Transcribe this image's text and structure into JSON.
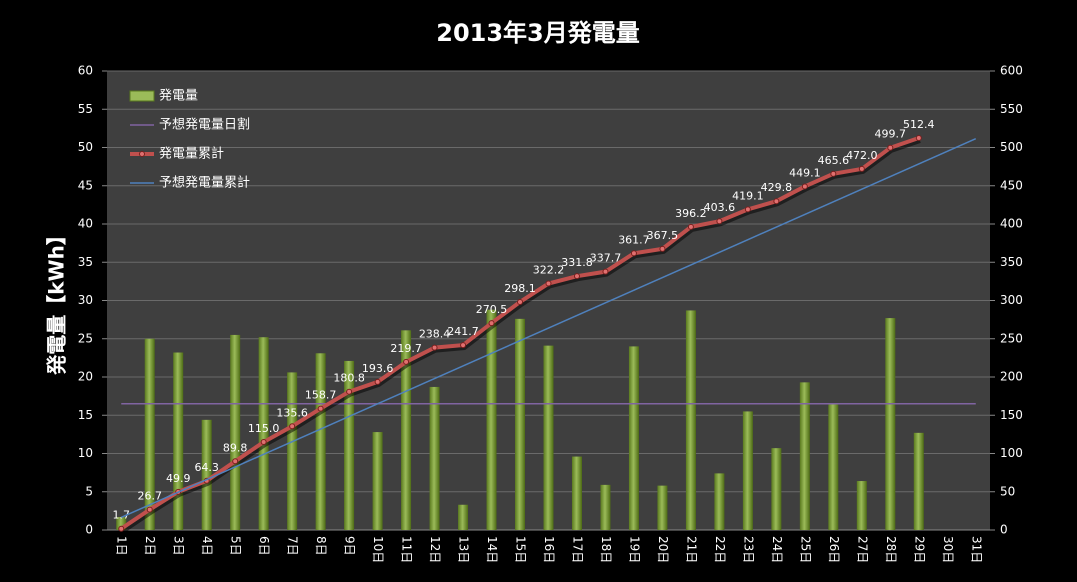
{
  "chart_data": {
    "type": "combo",
    "title": "2013年3月発電量",
    "y_label": "発電量【kWh】",
    "categories": [
      "1日",
      "2日",
      "3日",
      "4日",
      "5日",
      "6日",
      "7日",
      "8日",
      "9日",
      "10日",
      "11日",
      "12日",
      "13日",
      "14日",
      "15日",
      "16日",
      "17日",
      "18日",
      "19日",
      "20日",
      "21日",
      "22日",
      "23日",
      "24日",
      "25日",
      "26日",
      "27日",
      "28日",
      "29日",
      "30日",
      "31日"
    ],
    "ylim": [
      0,
      60
    ],
    "yticks": [
      0,
      5,
      10,
      15,
      20,
      25,
      30,
      35,
      40,
      45,
      50,
      55,
      60
    ],
    "y2lim": [
      0,
      600
    ],
    "y2ticks": [
      0,
      50,
      100,
      150,
      200,
      250,
      300,
      350,
      400,
      450,
      500,
      550,
      600
    ],
    "grid": true,
    "legend": "top-left",
    "series": [
      {
        "name": "発電量",
        "type": "bar",
        "color": "#9bbb59",
        "values": [
          1.7,
          25.0,
          23.2,
          14.4,
          25.5,
          25.2,
          20.6,
          23.1,
          22.1,
          12.8,
          26.1,
          18.7,
          3.3,
          28.8,
          27.6,
          24.1,
          9.6,
          5.9,
          24.0,
          5.8,
          28.7,
          7.4,
          15.5,
          10.7,
          19.3,
          16.5,
          6.4,
          27.7,
          12.7,
          null,
          null
        ]
      },
      {
        "name": "予想発電量日割",
        "type": "line",
        "color": "#8064a2",
        "values": [
          16.5,
          16.5,
          16.5,
          16.5,
          16.5,
          16.5,
          16.5,
          16.5,
          16.5,
          16.5,
          16.5,
          16.5,
          16.5,
          16.5,
          16.5,
          16.5,
          16.5,
          16.5,
          16.5,
          16.5,
          16.5,
          16.5,
          16.5,
          16.5,
          16.5,
          16.5,
          16.5,
          16.5,
          16.5,
          16.5,
          16.5
        ]
      },
      {
        "name": "発電量累計",
        "type": "line",
        "axis": "y2",
        "color": "#c0504d",
        "markers": true,
        "values": [
          1.7,
          26.7,
          49.9,
          64.3,
          89.8,
          115.0,
          135.6,
          158.7,
          180.8,
          193.6,
          219.7,
          238.4,
          241.7,
          270.5,
          298.1,
          322.2,
          331.8,
          337.7,
          361.7,
          367.5,
          396.2,
          403.6,
          419.1,
          429.8,
          449.1,
          465.6,
          472.0,
          499.7,
          512.4,
          null,
          null
        ],
        "value_labels": [
          "1.7",
          "26.7",
          "49.9",
          "64.3",
          "89.8",
          "115.0",
          "135.6",
          "158.7",
          "180.8",
          "193.6",
          "219.7",
          "238.4",
          "241.7",
          "270.5",
          "298.1",
          "322.2",
          "331.8",
          "337.7",
          "361.7",
          "367.5",
          "396.2",
          "403.6",
          "419.1",
          "429.8",
          "449.1",
          "465.6",
          "472.0",
          "499.7",
          "512.4",
          null,
          null
        ]
      },
      {
        "name": "予想発電量累計",
        "type": "line",
        "axis": "y2",
        "color": "#4f81bd",
        "values": [
          16.5,
          33,
          49.5,
          66,
          82.5,
          99,
          115.5,
          132,
          148.5,
          165,
          181.5,
          198,
          214.5,
          231,
          247.5,
          264,
          280.5,
          297,
          313.5,
          330,
          346.5,
          363,
          379.5,
          396,
          412.5,
          429,
          445.5,
          462,
          478.5,
          495,
          511.5
        ]
      }
    ]
  }
}
